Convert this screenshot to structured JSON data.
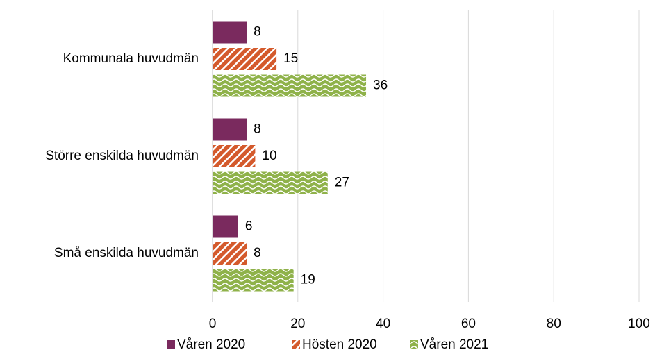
{
  "chart_data": {
    "type": "barh",
    "categories": [
      "Kommunala huvudmän",
      "Större enskilda huvudmän",
      "Små enskilda huvudmän"
    ],
    "series": [
      {
        "name": "Våren 2020",
        "color": "#7a2a5e",
        "values": [
          8,
          8,
          6
        ]
      },
      {
        "name": "Hösten 2020",
        "color": "#d45a2c",
        "values": [
          15,
          10,
          8
        ]
      },
      {
        "name": "Våren 2021",
        "color": "#8fb24a",
        "values": [
          36,
          27,
          19
        ]
      }
    ],
    "xlim": [
      0,
      100
    ],
    "xticks": [
      0,
      20,
      40,
      60,
      80,
      100
    ],
    "grid": true,
    "legend": "bottom"
  }
}
